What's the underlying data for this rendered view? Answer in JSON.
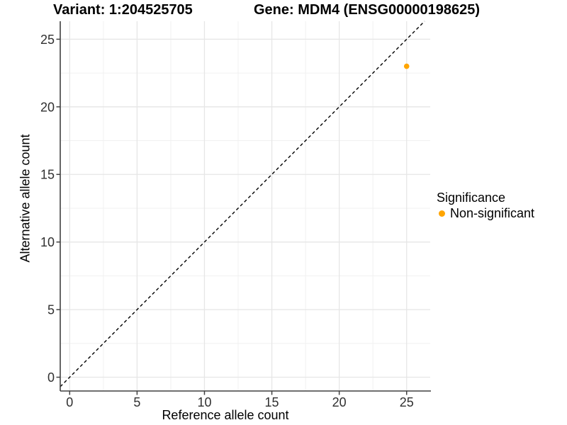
{
  "chart_data": {
    "type": "scatter",
    "titles": [
      "Variant: 1:204525705",
      "Gene: MDM4 (ENSG00000198625)"
    ],
    "xlabel": "Reference allele count",
    "ylabel": "Alternative allele count",
    "xlim": [
      -0.7,
      26.75
    ],
    "ylim": [
      -1.02,
      26.33
    ],
    "x_ticks": [
      0,
      5,
      10,
      15,
      20,
      25
    ],
    "y_ticks": [
      0,
      5,
      10,
      15,
      20,
      25
    ],
    "x_minor_ticks": [
      2.5,
      7.5,
      12.5,
      17.5,
      22.5
    ],
    "y_minor_ticks": [
      2.5,
      7.5,
      12.5,
      17.5,
      22.5
    ],
    "grid": true,
    "identity_line": {
      "equation": "y = x",
      "style": "dashed",
      "color": "#000000",
      "t_start": -0.7,
      "t_end": 26.33
    },
    "series": [
      {
        "name": "Non-significant",
        "color": "#FFA500",
        "points": [
          {
            "x": 25,
            "y": 23
          }
        ]
      }
    ],
    "legend": {
      "position": "right",
      "title": "Significance",
      "items": [
        {
          "label": "Non-significant",
          "color": "#FFA500"
        }
      ]
    }
  },
  "colors": {
    "background": "#FFFFFF",
    "grid_major": "#E6E6E6",
    "grid_minor": "#F1F1F1",
    "axis_line": "#404040",
    "tick_mark": "#404040",
    "tick_label": "#303030",
    "point_orange": "#FFA500"
  }
}
